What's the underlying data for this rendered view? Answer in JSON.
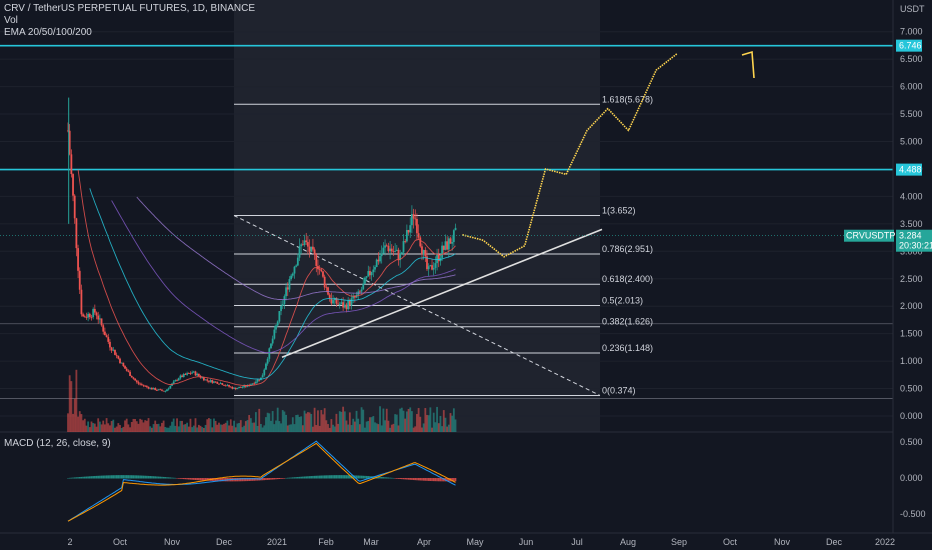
{
  "legend": {
    "symbol_line": "CRV / TetherUS PERPETUAL FUTURES, 1D, BINANCE",
    "vol": "Vol",
    "ema": "EMA 20/50/100/200"
  },
  "macd_legend": "MACD (12, 26, close, 9)",
  "colors": {
    "background": "#131722",
    "up": "#26a69a",
    "down": "#ef5350",
    "level_line": "#26c6da",
    "fib": "#d1d4dc",
    "trend": "#e0e0e0",
    "forecast": "#ffd54f",
    "price_tag": "#26a69a",
    "macd": "#2196f3",
    "signal": "#ff9800"
  },
  "chart_data": {
    "type": "candlestick",
    "title": "CRV / TetherUS PERPETUAL FUTURES, 1D, BINANCE",
    "y_axis_unit": "USDT",
    "y_ticks": [
      "0.000",
      "0.500",
      "1.000",
      "1.500",
      "2.000",
      "2.500",
      "3.000",
      "3.500",
      "4.000",
      "4.500",
      "5.000",
      "5.500",
      "6.000",
      "6.500",
      "7.000"
    ],
    "ylim": [
      -0.2,
      7.5
    ],
    "x_ticks": [
      "2",
      "Oct",
      "Nov",
      "Dec",
      "2021",
      "Feb",
      "Mar",
      "Apr",
      "May",
      "Jun",
      "Jul",
      "Aug",
      "Sep",
      "Oct",
      "Nov",
      "Dec",
      "2022"
    ],
    "horizontal_levels": [
      {
        "value": 6.746,
        "label": "6.746"
      },
      {
        "value": 4.488,
        "label": "4.488"
      }
    ],
    "last_price": {
      "symbol": "CRVUSDTPERP",
      "value": "3.284",
      "countdown": "20:30:21"
    },
    "fibonacci": [
      {
        "ratio": "1.618",
        "value": 5.678,
        "label": "1.618(5.678)"
      },
      {
        "ratio": "1",
        "value": 3.652,
        "label": "1(3.652)"
      },
      {
        "ratio": "0.786",
        "value": 2.951,
        "label": "0.786(2.951)"
      },
      {
        "ratio": "0.618",
        "value": 2.4,
        "label": "0.618(2.400)"
      },
      {
        "ratio": "0.5",
        "value": 2.013,
        "label": "0.5(2.013)"
      },
      {
        "ratio": "0.382",
        "value": 1.626,
        "label": "0.382(1.626)"
      },
      {
        "ratio": "0.236",
        "value": 1.148,
        "label": "0.236(1.148)"
      },
      {
        "ratio": "0",
        "value": 0.374,
        "label": "0(0.374)"
      }
    ],
    "price_series_approx": [
      {
        "t": 0.0,
        "v": 5.2
      },
      {
        "t": 0.02,
        "v": 1.8
      },
      {
        "t": 0.04,
        "v": 1.9
      },
      {
        "t": 0.06,
        "v": 1.3
      },
      {
        "t": 0.08,
        "v": 0.9
      },
      {
        "t": 0.1,
        "v": 0.6
      },
      {
        "t": 0.12,
        "v": 0.5
      },
      {
        "t": 0.14,
        "v": 0.45
      },
      {
        "t": 0.16,
        "v": 0.7
      },
      {
        "t": 0.18,
        "v": 0.8
      },
      {
        "t": 0.2,
        "v": 0.65
      },
      {
        "t": 0.22,
        "v": 0.6
      },
      {
        "t": 0.24,
        "v": 0.5
      },
      {
        "t": 0.26,
        "v": 0.55
      },
      {
        "t": 0.28,
        "v": 0.7
      },
      {
        "t": 0.3,
        "v": 1.6
      },
      {
        "t": 0.32,
        "v": 2.5
      },
      {
        "t": 0.34,
        "v": 3.2
      },
      {
        "t": 0.36,
        "v": 2.8
      },
      {
        "t": 0.38,
        "v": 2.1
      },
      {
        "t": 0.4,
        "v": 2.0
      },
      {
        "t": 0.42,
        "v": 2.2
      },
      {
        "t": 0.44,
        "v": 2.7
      },
      {
        "t": 0.46,
        "v": 3.1
      },
      {
        "t": 0.48,
        "v": 2.9
      },
      {
        "t": 0.5,
        "v": 3.7
      },
      {
        "t": 0.52,
        "v": 2.6
      },
      {
        "t": 0.54,
        "v": 3.0
      },
      {
        "t": 0.56,
        "v": 3.3
      }
    ],
    "forecast_path_approx": [
      {
        "t": 0.57,
        "v": 3.3
      },
      {
        "t": 0.6,
        "v": 3.2
      },
      {
        "t": 0.63,
        "v": 2.9
      },
      {
        "t": 0.66,
        "v": 3.1
      },
      {
        "t": 0.69,
        "v": 4.5
      },
      {
        "t": 0.72,
        "v": 4.4
      },
      {
        "t": 0.75,
        "v": 5.2
      },
      {
        "t": 0.78,
        "v": 5.6
      },
      {
        "t": 0.81,
        "v": 5.2
      },
      {
        "t": 0.85,
        "v": 6.3
      },
      {
        "t": 0.88,
        "v": 6.6
      }
    ],
    "macd": {
      "y_ticks": [
        "0.500",
        "0.000",
        "-0.500"
      ],
      "ylim": [
        -0.6,
        0.6
      ]
    }
  }
}
